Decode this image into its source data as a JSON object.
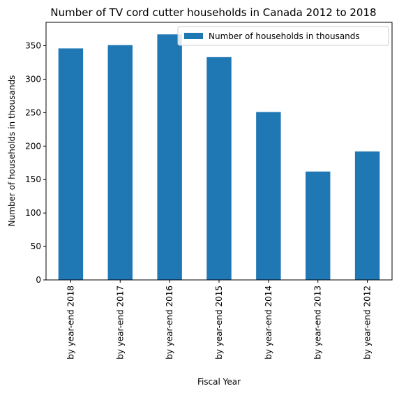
{
  "chart_data": {
    "type": "bar",
    "title": "Number of TV cord cutter households in Canada 2012 to 2018",
    "xlabel": "Fiscal Year",
    "ylabel": "Number of households in thousands",
    "categories": [
      "by year-end 2018",
      "by year-end 2017",
      "by year-end 2016",
      "by year-end 2015",
      "by year-end 2014",
      "by year-end 2013",
      "by year-end 2012"
    ],
    "series": [
      {
        "name": "Number of households in thousands",
        "values": [
          346,
          351,
          367,
          333,
          251,
          162,
          192
        ],
        "color": "#1f77b4"
      }
    ],
    "ylim": [
      0,
      385
    ],
    "yticks": [
      0,
      50,
      100,
      150,
      200,
      250,
      300,
      350
    ],
    "grid": false,
    "legend": "top-right"
  }
}
